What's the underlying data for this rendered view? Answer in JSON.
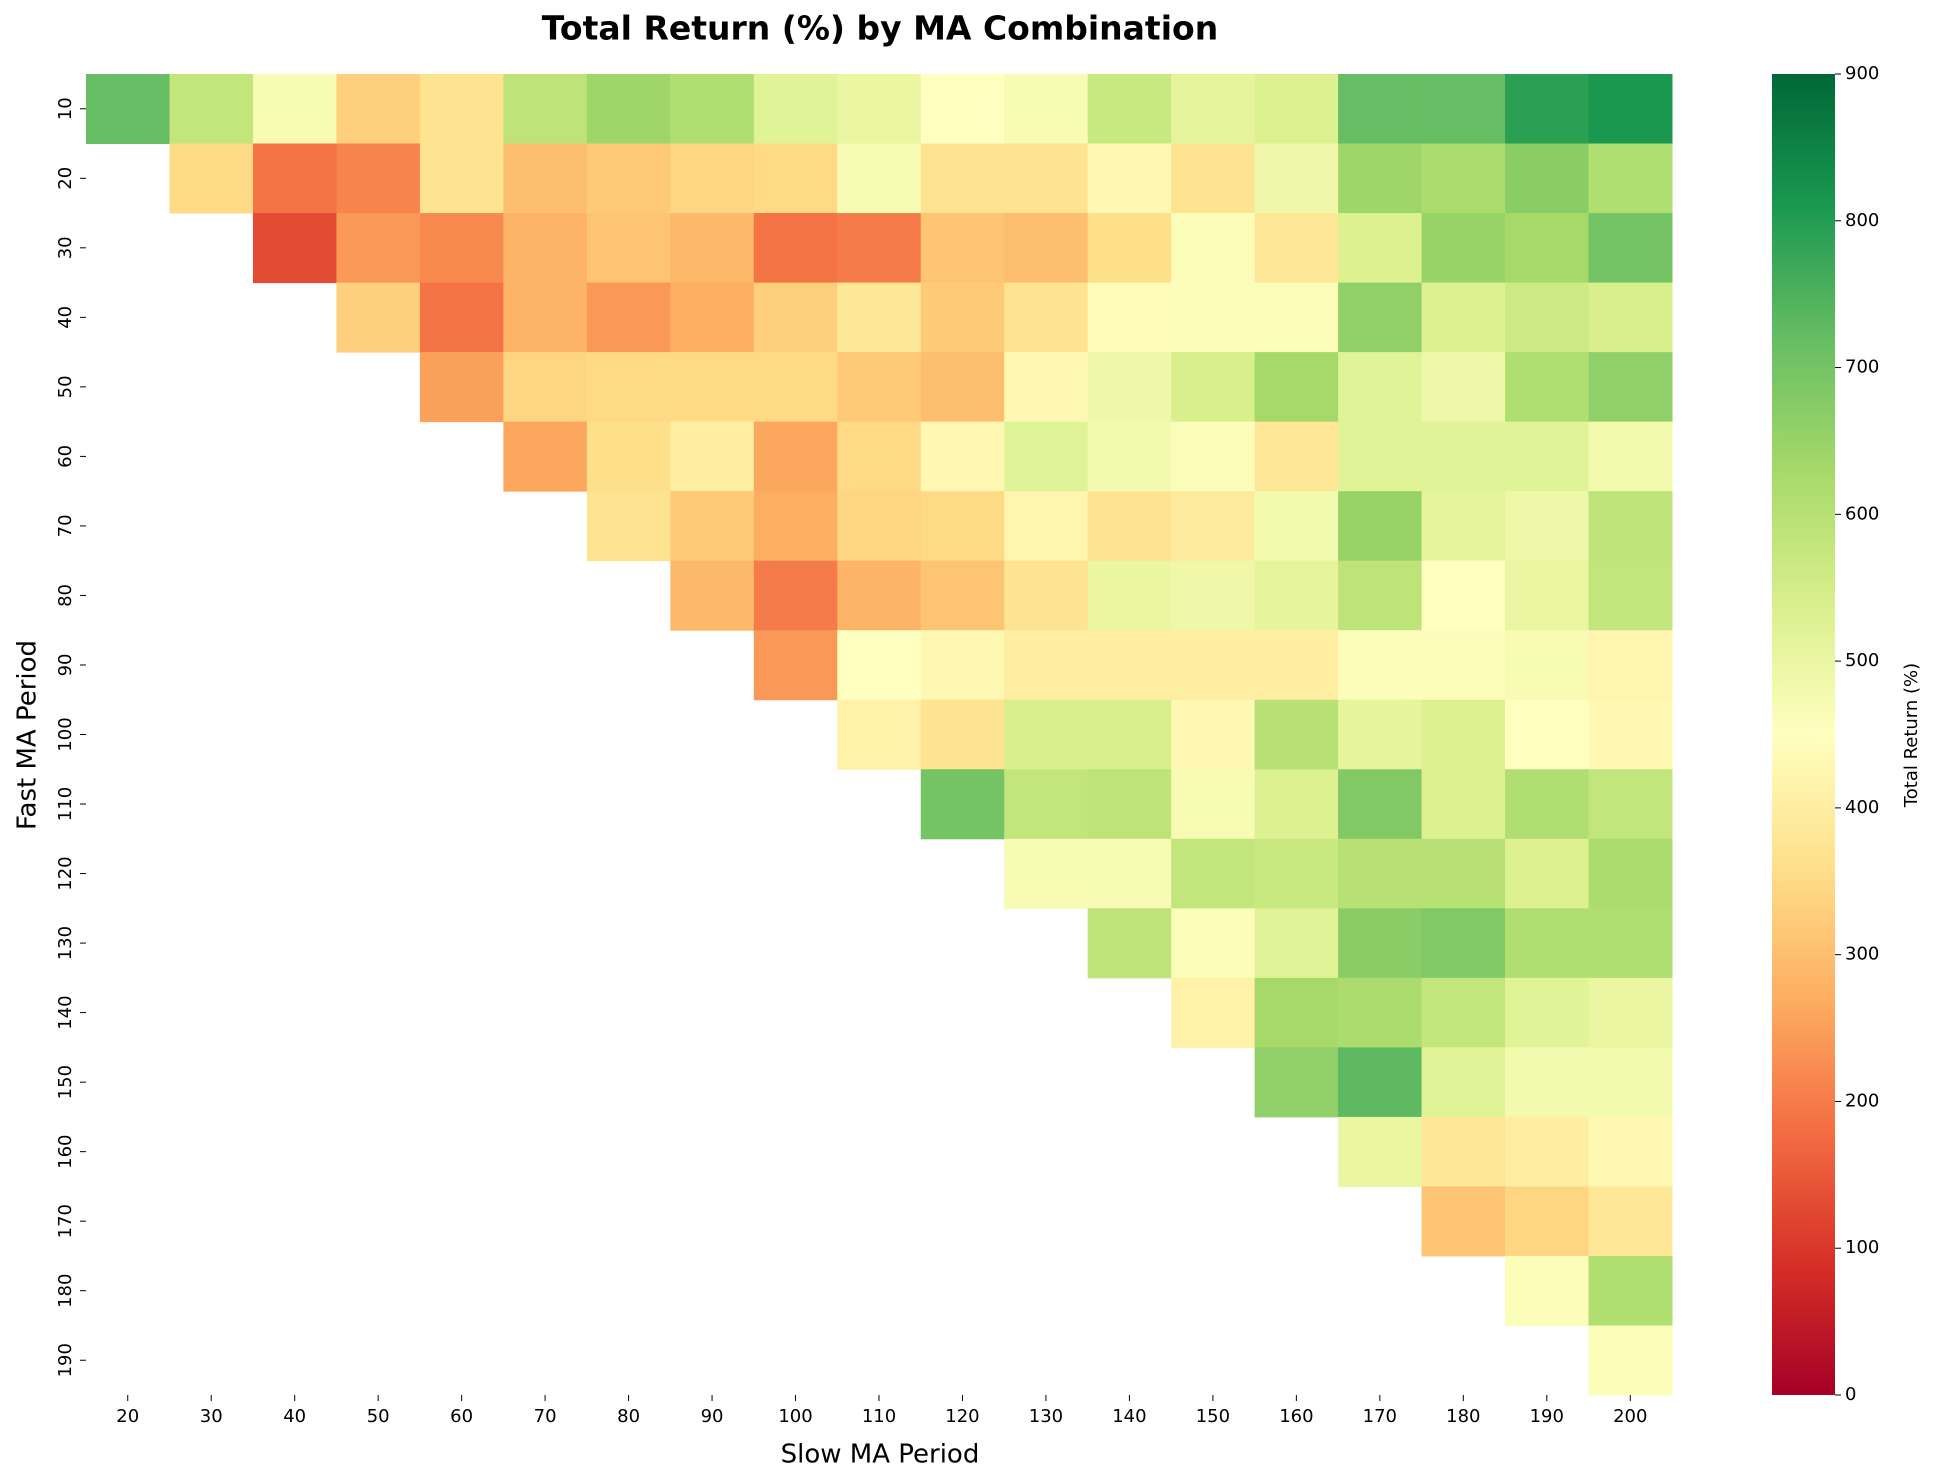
{
  "chart_data": {
    "type": "heatmap",
    "title": "Total Return (%) by MA Combination",
    "x_label": "Slow MA Period",
    "y_label": "Fast MA Period",
    "colorbar_label": "Total Return (%)",
    "colormap": "RdYlGn",
    "clim": [
      0,
      900
    ],
    "cticks": [
      0,
      100,
      200,
      300,
      400,
      500,
      600,
      700,
      800,
      900
    ],
    "x": [
      20,
      30,
      40,
      50,
      60,
      70,
      80,
      90,
      100,
      110,
      120,
      130,
      140,
      150,
      160,
      170,
      180,
      190,
      200
    ],
    "y": [
      10,
      20,
      30,
      40,
      50,
      60,
      70,
      80,
      90,
      100,
      110,
      120,
      130,
      140,
      150,
      160,
      170,
      180,
      190
    ],
    "z": [
      [
        720,
        580,
        470,
        330,
        370,
        590,
        640,
        610,
        520,
        500,
        450,
        470,
        570,
        510,
        530,
        720,
        720,
        790,
        810
      ],
      [
        null,
        350,
        190,
        210,
        370,
        300,
        320,
        340,
        350,
        470,
        370,
        370,
        430,
        370,
        490,
        640,
        620,
        670,
        610
      ],
      [
        null,
        null,
        130,
        240,
        220,
        280,
        310,
        290,
        190,
        200,
        310,
        300,
        360,
        460,
        380,
        530,
        650,
        630,
        700
      ],
      [
        null,
        null,
        null,
        330,
        190,
        280,
        240,
        270,
        330,
        380,
        320,
        370,
        440,
        460,
        460,
        660,
        530,
        560,
        540
      ],
      [
        null,
        null,
        null,
        null,
        250,
        340,
        350,
        350,
        350,
        320,
        300,
        430,
        490,
        540,
        630,
        520,
        490,
        610,
        660
      ],
      [
        null,
        null,
        null,
        null,
        null,
        260,
        360,
        400,
        260,
        350,
        430,
        520,
        480,
        460,
        380,
        520,
        520,
        520,
        480
      ],
      [
        null,
        null,
        null,
        null,
        null,
        null,
        370,
        320,
        270,
        340,
        350,
        420,
        370,
        390,
        480,
        650,
        510,
        490,
        590
      ],
      [
        null,
        null,
        null,
        null,
        null,
        null,
        null,
        290,
        200,
        280,
        310,
        370,
        500,
        490,
        510,
        590,
        450,
        500,
        580
      ],
      [
        null,
        null,
        null,
        null,
        null,
        null,
        null,
        null,
        240,
        450,
        430,
        400,
        400,
        400,
        400,
        460,
        460,
        470,
        420
      ],
      [
        null,
        null,
        null,
        null,
        null,
        null,
        null,
        null,
        null,
        410,
        370,
        540,
        540,
        430,
        600,
        510,
        530,
        450,
        430
      ],
      [
        null,
        null,
        null,
        null,
        null,
        null,
        null,
        null,
        null,
        null,
        700,
        580,
        590,
        470,
        530,
        680,
        530,
        610,
        580
      ],
      [
        null,
        null,
        null,
        null,
        null,
        null,
        null,
        null,
        null,
        null,
        null,
        470,
        470,
        580,
        570,
        600,
        600,
        530,
        620
      ],
      [
        null,
        null,
        null,
        null,
        null,
        null,
        null,
        null,
        null,
        null,
        null,
        null,
        590,
        460,
        520,
        670,
        680,
        610,
        610
      ],
      [
        null,
        null,
        null,
        null,
        null,
        null,
        null,
        null,
        null,
        null,
        null,
        null,
        null,
        410,
        630,
        620,
        580,
        520,
        500
      ],
      [
        null,
        null,
        null,
        null,
        null,
        null,
        null,
        null,
        null,
        null,
        null,
        null,
        null,
        null,
        660,
        730,
        520,
        480,
        480
      ],
      [
        null,
        null,
        null,
        null,
        null,
        null,
        null,
        null,
        null,
        null,
        null,
        null,
        null,
        null,
        null,
        500,
        380,
        400,
        430
      ],
      [
        null,
        null,
        null,
        null,
        null,
        null,
        null,
        null,
        null,
        null,
        null,
        null,
        null,
        null,
        null,
        null,
        310,
        340,
        380
      ],
      [
        null,
        null,
        null,
        null,
        null,
        null,
        null,
        null,
        null,
        null,
        null,
        null,
        null,
        null,
        null,
        null,
        null,
        460,
        610
      ],
      [
        null,
        null,
        null,
        null,
        null,
        null,
        null,
        null,
        null,
        null,
        null,
        null,
        null,
        null,
        null,
        null,
        null,
        null,
        460
      ]
    ]
  }
}
